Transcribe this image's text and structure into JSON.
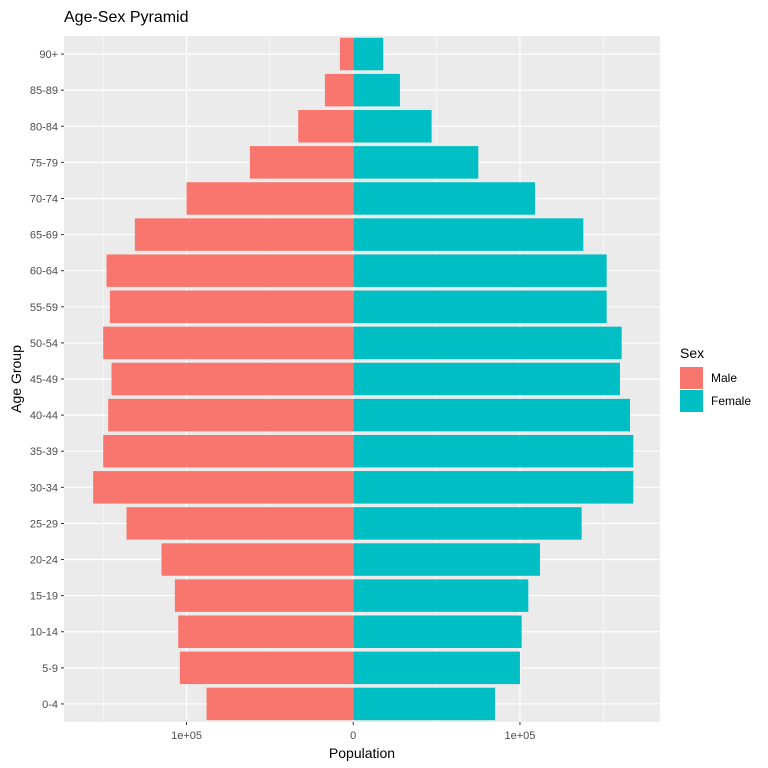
{
  "chart_data": {
    "type": "bar",
    "orientation": "horizontal",
    "title": "Age-Sex Pyramid",
    "xlabel": "Population",
    "ylabel": "Age Group",
    "categories": [
      "0-4",
      "5-9",
      "10-14",
      "15-19",
      "20-24",
      "25-29",
      "30-34",
      "35-39",
      "40-44",
      "45-49",
      "50-54",
      "55-59",
      "60-64",
      "65-69",
      "70-74",
      "75-79",
      "80-84",
      "85-89",
      "90+"
    ],
    "series": [
      {
        "name": "Male",
        "color": "#F8766D",
        "values": [
          -88000,
          -104000,
          -105000,
          -107000,
          -115000,
          -136000,
          -156000,
          -150000,
          -147000,
          -145000,
          -150000,
          -146000,
          -148000,
          -131000,
          -100000,
          -62000,
          -33000,
          -17000,
          -8000
        ]
      },
      {
        "name": "Female",
        "color": "#00BFC4",
        "values": [
          85000,
          100000,
          101000,
          105000,
          112000,
          137000,
          168000,
          168000,
          166000,
          160000,
          161000,
          152000,
          152000,
          138000,
          109000,
          75000,
          47000,
          28000,
          18000
        ]
      }
    ],
    "xlim": [
      -173500,
      184000
    ],
    "x_ticks": [
      {
        "value": -100000,
        "label": "1e+05"
      },
      {
        "value": 0,
        "label": "0"
      },
      {
        "value": 100000,
        "label": "1e+05"
      }
    ],
    "x_minor_ticks": [
      -150000,
      -50000,
      50000,
      150000
    ],
    "grid": true,
    "panel_background": "#EBEBEB",
    "legend": {
      "title": "Sex",
      "position": "right",
      "entries": [
        {
          "label": "Male",
          "color": "#F8766D"
        },
        {
          "label": "Female",
          "color": "#00BFC4"
        }
      ]
    }
  }
}
